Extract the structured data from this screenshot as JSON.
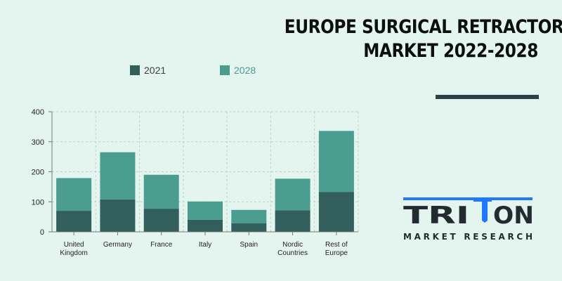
{
  "title": {
    "line1": "EUROPE SURGICAL RETRACTORS",
    "line2": "MARKET 2022-2028"
  },
  "colors": {
    "s2021": "#325e5c",
    "s2028": "#4a9d8f",
    "background": "#e4f5ef",
    "logo_blue": "#1f78ff",
    "logo_dark": "#222b30"
  },
  "legend": [
    {
      "label": "2021",
      "color": "#325e5c",
      "text_color": "#3a3f40"
    },
    {
      "label": "2028",
      "color": "#4a9d8f",
      "text_color": "#4a9d8f"
    }
  ],
  "logo": {
    "brand_left": "TRI",
    "brand_right": "ON",
    "tagline": "MARKET RESEARCH"
  },
  "chart_data": {
    "type": "bar",
    "stacked": true,
    "categories": [
      [
        "United",
        "Kingdom"
      ],
      [
        "Germany"
      ],
      [
        "France"
      ],
      [
        "Italy"
      ],
      [
        "Spain"
      ],
      [
        "Nordic",
        "Countries"
      ],
      [
        "Rest of",
        "Europe"
      ]
    ],
    "series": [
      {
        "name": "2021",
        "values": [
          70,
          108,
          77,
          40,
          28,
          72,
          133
        ]
      },
      {
        "name": "2028",
        "values": [
          109,
          157,
          113,
          61,
          45,
          105,
          203
        ]
      }
    ],
    "ylim": [
      0,
      400
    ],
    "yticks": [
      0,
      100,
      200,
      300,
      400
    ],
    "grid": true,
    "legend_position": "top"
  }
}
